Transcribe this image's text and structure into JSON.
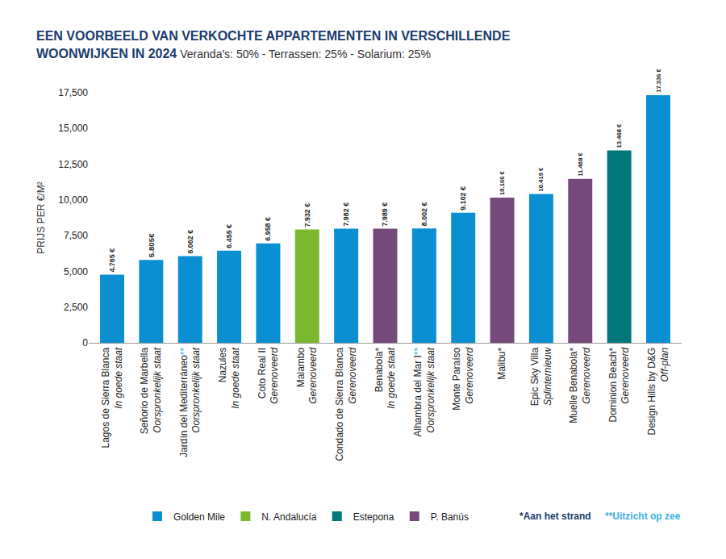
{
  "chart_data": {
    "type": "bar",
    "title": "EEN VOORBEELD VAN VERKOCHTE APPARTEMENTEN IN VERSCHILLENDE WOONWIJKEN IN 2024",
    "subtitle": "Veranda's: 50% - Terrassen: 25% - Solarium: 25%",
    "y_label": "PRIJS PER €/M²",
    "categories": [
      "Lagos de Sierra Blanca",
      "Señorio de Marbella",
      "Jardín del Mediterráneo**",
      "Nazules",
      "Coto Real II",
      "Malambo",
      "Condado de Sierra Blanca",
      "Benabola*",
      "Alhambra del Mar I**",
      "Monte Paraíso",
      "Malibu*",
      "Epic Sky Villa",
      "Muelle Benabola*",
      "Dominion Beach*",
      "Design Hills by D&G"
    ],
    "conditions": [
      "In goede staat",
      "Oorspronkelijk staat",
      "Oorspronkelijk staat",
      "In goede staat",
      "Gerenoveerd",
      "Gerenoveerd",
      "Gerenoveerd",
      "In goede staat",
      "Oorspronkelijk staat",
      "Gerenoveerd",
      null,
      "Splinternieuw",
      "Gerenoveerd",
      "Gerenoveerd",
      "Off-plan"
    ],
    "series": [
      {
        "name": "Golden Mile",
        "color": "#0b8fd3",
        "values": [
          4765,
          5805,
          6062,
          6455,
          6958,
          null,
          7982,
          null,
          8002,
          9102,
          null,
          10419,
          null,
          null,
          17336
        ],
        "value_labels": [
          "4.765 €",
          "5.805€",
          "6.062 €",
          "6.455 €",
          "6.958 €",
          null,
          "7.982 €",
          null,
          "8.002 €",
          "9.102 €",
          null,
          "10.419 €",
          null,
          null,
          "17.336 €"
        ]
      },
      {
        "name": "N. Andalucía",
        "color": "#7cb82f",
        "values": [
          null,
          null,
          null,
          null,
          null,
          7932,
          null,
          null,
          null,
          null,
          null,
          null,
          null,
          null,
          null
        ],
        "value_labels": [
          null,
          null,
          null,
          null,
          null,
          "7.932 €",
          null,
          null,
          null,
          null,
          null,
          null,
          null,
          null,
          null
        ]
      },
      {
        "name": "Estepona",
        "color": "#00787a",
        "values": [
          null,
          null,
          null,
          null,
          null,
          null,
          null,
          null,
          null,
          null,
          null,
          null,
          null,
          13468,
          null
        ],
        "value_labels": [
          null,
          null,
          null,
          null,
          null,
          null,
          null,
          null,
          null,
          null,
          null,
          null,
          null,
          "13.468 €",
          null
        ]
      },
      {
        "name": "P. Banús",
        "color": "#754a7b",
        "values": [
          null,
          null,
          null,
          null,
          null,
          null,
          null,
          7989,
          null,
          null,
          10166,
          null,
          11468,
          null,
          null
        ],
        "value_labels": [
          null,
          null,
          null,
          null,
          null,
          null,
          null,
          "7.989 €",
          null,
          null,
          "10.166 €",
          null,
          "11.468 €",
          null,
          null
        ]
      }
    ],
    "annotations": [
      "*Aan het strand",
      "**Uitzicht op zee"
    ],
    "ylim": [
      0,
      17500
    ],
    "yticks": [
      0,
      {
        "value": 2500,
        "label": "2,500"
      },
      {
        "value": 5000,
        "label": "5,000"
      },
      {
        "value": 7500,
        "label": "7,500"
      },
      {
        "value": 10000,
        "label": "10,000"
      },
      {
        "value": 12500,
        "label": "12,500"
      },
      {
        "value": 15000,
        "label": "15,000"
      },
      {
        "value": 17500,
        "label": "17,500"
      }
    ],
    "grid": false,
    "legend": "bottom",
    "data_labels": true
  }
}
